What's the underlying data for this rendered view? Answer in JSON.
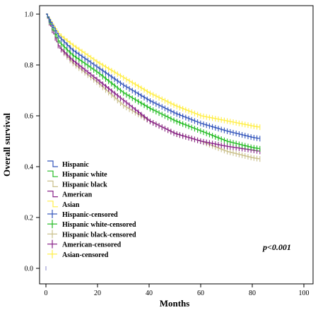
{
  "chart_data": {
    "type": "line",
    "title": "",
    "xlabel": "Months",
    "ylabel": "Overall survival",
    "xlim": [
      0,
      100
    ],
    "ylim": [
      0,
      1.0
    ],
    "x_ticks": [
      "0",
      "20",
      "40",
      "60",
      "80",
      "100"
    ],
    "y_ticks": [
      "0.0",
      "0.2",
      "0.4",
      "0.6",
      "0.8",
      "1.0"
    ],
    "legend_position": "lower-left",
    "legend": [
      "Hispanic",
      "Hispanic white",
      "Hispanic black",
      "American",
      "Asian",
      "Hispanic-censored",
      "Hispanic white-censored",
      "Hispanic black-censored",
      "American-censored",
      "Asian-censored"
    ],
    "annotation": "p<0.001",
    "series": [
      {
        "name": "Hispanic",
        "color": "#3355bb",
        "x": [
          0,
          5,
          10,
          20,
          30,
          40,
          50,
          60,
          70,
          80,
          83
        ],
        "y": [
          1.0,
          0.91,
          0.86,
          0.79,
          0.72,
          0.66,
          0.61,
          0.57,
          0.54,
          0.515,
          0.51
        ]
      },
      {
        "name": "Hispanic white",
        "color": "#22bb22",
        "x": [
          0,
          5,
          10,
          20,
          30,
          40,
          50,
          60,
          70,
          80,
          83
        ],
        "y": [
          1.0,
          0.89,
          0.84,
          0.77,
          0.69,
          0.63,
          0.58,
          0.54,
          0.5,
          0.475,
          0.47
        ]
      },
      {
        "name": "Hispanic black",
        "color": "#c9bf8a",
        "x": [
          0,
          5,
          10,
          20,
          30,
          40,
          50,
          60,
          70,
          80,
          83
        ],
        "y": [
          1.0,
          0.87,
          0.81,
          0.73,
          0.64,
          0.58,
          0.53,
          0.5,
          0.46,
          0.435,
          0.43
        ]
      },
      {
        "name": "American",
        "color": "#882288",
        "x": [
          0,
          5,
          10,
          20,
          30,
          40,
          50,
          60,
          70,
          80,
          83
        ],
        "y": [
          1.0,
          0.87,
          0.82,
          0.74,
          0.66,
          0.58,
          0.53,
          0.5,
          0.48,
          0.465,
          0.46
        ]
      },
      {
        "name": "Asian",
        "color": "#ffee44",
        "x": [
          0,
          5,
          10,
          20,
          30,
          40,
          50,
          60,
          70,
          80,
          83
        ],
        "y": [
          1.0,
          0.92,
          0.88,
          0.81,
          0.75,
          0.69,
          0.64,
          0.6,
          0.58,
          0.56,
          0.555
        ]
      }
    ]
  }
}
